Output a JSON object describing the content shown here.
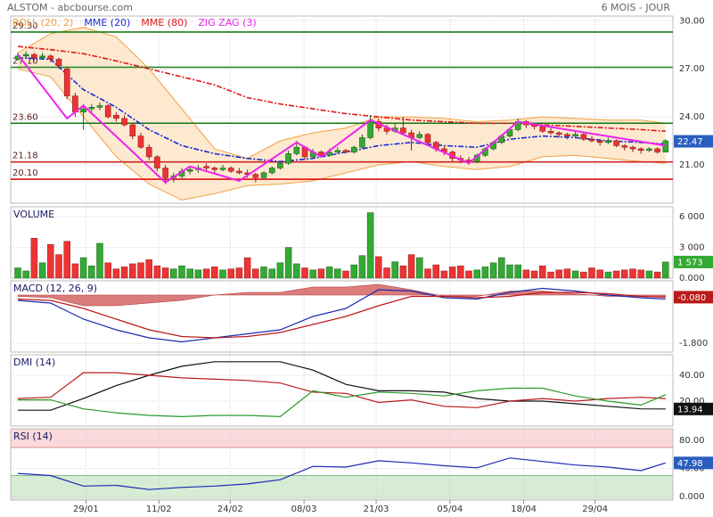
{
  "chart_data": {
    "type": "candlestick",
    "title": "ALSTOM - abcbourse.com",
    "period": "6 MOIS - JOUR",
    "xticks": [
      {
        "value": 8.3,
        "label": "29/01"
      },
      {
        "value": 17.2,
        "label": "11/02"
      },
      {
        "value": 25.9,
        "label": "24/02"
      },
      {
        "value": 34.9,
        "label": "08/03"
      },
      {
        "value": 43.7,
        "label": "21/03"
      },
      {
        "value": 52.7,
        "label": "05/04"
      },
      {
        "value": 61.7,
        "label": "18/04"
      },
      {
        "value": 70.4,
        "label": "29/04"
      }
    ],
    "sample_x": [
      0,
      4,
      8,
      12,
      16,
      20,
      24,
      28,
      32,
      36,
      40,
      44,
      48,
      52,
      56,
      60,
      64,
      68,
      72,
      76,
      79
    ],
    "price": {
      "ylim": [
        18.6,
        30.3
      ],
      "yticks": [
        {
          "value": 21,
          "label": "21.00"
        },
        {
          "value": 24,
          "label": "24.00"
        },
        {
          "value": 27,
          "label": "27.00"
        },
        {
          "value": 30,
          "label": "30.00"
        }
      ],
      "up_color": "#33aa33",
      "down_color": "#ee3333",
      "ohlc": [
        [
          27.6,
          28.0,
          27.5,
          27.8
        ],
        [
          27.8,
          28.1,
          27.6,
          27.9
        ],
        [
          27.9,
          28.0,
          27.5,
          27.7
        ],
        [
          27.7,
          28.0,
          27.6,
          27.8
        ],
        [
          27.8,
          27.9,
          27.4,
          27.6
        ],
        [
          27.6,
          27.7,
          27.0,
          27.2
        ],
        [
          27.0,
          27.1,
          25.1,
          25.3
        ],
        [
          25.3,
          25.5,
          24.0,
          24.3
        ],
        [
          24.3,
          24.8,
          23.2,
          24.5
        ],
        [
          24.5,
          24.8,
          24.3,
          24.6
        ],
        [
          24.6,
          24.9,
          24.4,
          24.7
        ],
        [
          24.7,
          24.8,
          23.9,
          24.0
        ],
        [
          24.1,
          24.3,
          23.7,
          23.9
        ],
        [
          23.9,
          24.1,
          23.4,
          23.5
        ],
        [
          23.5,
          23.6,
          22.6,
          22.8
        ],
        [
          22.8,
          23.0,
          22.0,
          22.1
        ],
        [
          22.1,
          22.3,
          21.3,
          21.5
        ],
        [
          21.5,
          21.6,
          20.6,
          20.8
        ],
        [
          20.8,
          21.0,
          19.8,
          20.2
        ],
        [
          20.2,
          20.5,
          19.9,
          20.3
        ],
        [
          20.3,
          20.8,
          20.1,
          20.6
        ],
        [
          20.6,
          20.9,
          20.4,
          20.7
        ],
        [
          20.7,
          21.0,
          20.5,
          20.8
        ],
        [
          20.9,
          21.1,
          20.6,
          20.8
        ],
        [
          20.8,
          20.9,
          20.5,
          20.7
        ],
        [
          20.7,
          21.0,
          20.6,
          20.8
        ],
        [
          20.8,
          20.9,
          20.5,
          20.6
        ],
        [
          20.6,
          20.8,
          20.4,
          20.5
        ],
        [
          20.5,
          20.7,
          20.2,
          20.4
        ],
        [
          20.4,
          20.5,
          19.9,
          20.2
        ],
        [
          20.2,
          20.6,
          20.1,
          20.5
        ],
        [
          20.5,
          20.9,
          20.4,
          20.8
        ],
        [
          20.8,
          21.2,
          20.7,
          21.1
        ],
        [
          21.1,
          21.9,
          21.0,
          21.7
        ],
        [
          21.7,
          22.5,
          21.6,
          22.1
        ],
        [
          22.1,
          22.2,
          21.3,
          21.5
        ],
        [
          21.5,
          22.0,
          21.4,
          21.8
        ],
        [
          21.8,
          21.9,
          21.5,
          21.6
        ],
        [
          21.6,
          22.0,
          21.5,
          21.8
        ],
        [
          21.8,
          22.1,
          21.7,
          21.9
        ],
        [
          21.9,
          22.0,
          21.7,
          21.8
        ],
        [
          21.8,
          22.2,
          21.7,
          22.1
        ],
        [
          22.1,
          22.9,
          22.0,
          22.7
        ],
        [
          22.7,
          24.1,
          22.6,
          23.7
        ],
        [
          23.7,
          23.9,
          23.1,
          23.3
        ],
        [
          23.3,
          23.5,
          22.9,
          23.1
        ],
        [
          23.1,
          23.6,
          23.0,
          23.3
        ],
        [
          23.3,
          24.0,
          22.9,
          23.0
        ],
        [
          23.0,
          23.2,
          21.9,
          22.7
        ],
        [
          22.7,
          23.1,
          22.6,
          22.9
        ],
        [
          22.9,
          23.0,
          22.2,
          22.4
        ],
        [
          22.4,
          22.5,
          21.8,
          22.0
        ],
        [
          22.0,
          22.2,
          21.6,
          21.8
        ],
        [
          21.8,
          21.9,
          21.2,
          21.4
        ],
        [
          21.4,
          21.6,
          21.1,
          21.3
        ],
        [
          21.3,
          21.5,
          21.0,
          21.2
        ],
        [
          21.2,
          21.7,
          21.1,
          21.6
        ],
        [
          21.6,
          22.1,
          21.5,
          22.0
        ],
        [
          22.0,
          22.5,
          21.9,
          22.4
        ],
        [
          22.4,
          22.9,
          22.3,
          22.8
        ],
        [
          22.8,
          23.3,
          22.7,
          23.2
        ],
        [
          23.2,
          23.9,
          23.1,
          23.7
        ],
        [
          23.7,
          23.8,
          23.3,
          23.5
        ],
        [
          23.5,
          23.6,
          23.2,
          23.4
        ],
        [
          23.4,
          23.5,
          23.0,
          23.1
        ],
        [
          23.1,
          23.3,
          22.9,
          23.0
        ],
        [
          23.0,
          23.1,
          22.7,
          22.9
        ],
        [
          22.9,
          23.0,
          22.6,
          22.8
        ],
        [
          22.8,
          23.1,
          22.7,
          22.9
        ],
        [
          22.9,
          23.0,
          22.5,
          22.6
        ],
        [
          22.6,
          22.8,
          22.4,
          22.5
        ],
        [
          22.5,
          22.6,
          22.2,
          22.4
        ],
        [
          22.4,
          22.7,
          22.3,
          22.5
        ],
        [
          22.5,
          22.6,
          22.1,
          22.2
        ],
        [
          22.2,
          22.3,
          21.9,
          22.1
        ],
        [
          22.1,
          22.2,
          21.8,
          22.0
        ],
        [
          22.0,
          22.1,
          21.7,
          21.9
        ],
        [
          21.9,
          22.1,
          21.8,
          22.0
        ],
        [
          22.0,
          22.1,
          21.7,
          21.8
        ],
        [
          21.8,
          22.6,
          21.8,
          22.5
        ]
      ],
      "levels": [
        {
          "value": 29.3,
          "label": "29.30",
          "color": "#1a7a1a"
        },
        {
          "value": 27.1,
          "label": "27.10",
          "color": "#2a8a2a"
        },
        {
          "value": 23.6,
          "label": "23.60",
          "color": "#117711"
        },
        {
          "value": 21.18,
          "label": "21.18",
          "color": "#cc2222"
        },
        {
          "value": 20.1,
          "label": "20.10",
          "color": "#dd1111"
        }
      ],
      "bollinger": {
        "name": "BOLL (20, 2)",
        "color": "#f0a040",
        "fill": "#fde9d0",
        "upper": [
          28.0,
          29.2,
          29.6,
          29.0,
          27.0,
          24.5,
          22.0,
          21.4,
          22.5,
          23.0,
          23.3,
          24.0,
          24.0,
          23.9,
          23.7,
          23.8,
          24.0,
          23.9,
          23.8,
          23.8,
          23.6
        ],
        "lower": [
          27.0,
          26.5,
          24.0,
          21.5,
          19.8,
          18.8,
          19.2,
          19.7,
          19.8,
          20.0,
          20.5,
          21.0,
          21.2,
          20.9,
          20.7,
          20.9,
          21.5,
          21.6,
          21.4,
          21.2,
          21.1
        ]
      },
      "mme20": {
        "name": "MME (20)",
        "color": "#1a2ad0",
        "values": [
          27.7,
          27.6,
          25.7,
          24.6,
          23.2,
          22.2,
          21.7,
          21.4,
          21.2,
          21.4,
          21.8,
          22.2,
          22.4,
          22.2,
          22.1,
          22.6,
          22.8,
          22.7,
          22.5,
          22.4,
          22.3
        ]
      },
      "mme80": {
        "name": "MME (80)",
        "color": "#dd1a1a",
        "values": [
          28.4,
          28.2,
          27.95,
          27.5,
          27.0,
          26.5,
          26.0,
          25.2,
          24.8,
          24.5,
          24.2,
          24.0,
          23.8,
          23.7,
          23.6,
          23.6,
          23.5,
          23.4,
          23.3,
          23.2,
          23.1
        ]
      },
      "zigzag": {
        "name": "ZIG ZAG (3)",
        "color": "#ee22ee",
        "x": [
          0,
          6,
          8,
          18,
          21,
          27,
          34,
          37,
          43,
          55,
          61,
          79
        ],
        "values": [
          27.9,
          23.9,
          24.7,
          19.9,
          20.9,
          20.0,
          22.4,
          21.5,
          23.8,
          21.1,
          23.7,
          22.2
        ]
      },
      "last": {
        "value": 22.47,
        "label": "22.47",
        "color": "#2a5fc0"
      }
    },
    "volume": {
      "title": "VOLUME",
      "ylim": [
        0,
        6970
      ],
      "yticks": [
        {
          "value": 0,
          "label": "0.000"
        },
        {
          "value": 3000,
          "label": "3 000"
        },
        {
          "value": 6000,
          "label": "6 000"
        }
      ],
      "values": [
        1000,
        700,
        3900,
        1500,
        3300,
        2300,
        3600,
        1400,
        2000,
        1200,
        3400,
        1500,
        900,
        1100,
        1400,
        1500,
        1800,
        1200,
        1000,
        900,
        1200,
        900,
        800,
        900,
        1100,
        800,
        900,
        1000,
        2000,
        900,
        1100,
        900,
        1500,
        3000,
        1400,
        1000,
        800,
        900,
        1100,
        900,
        700,
        1300,
        2200,
        6400,
        2100,
        1000,
        1600,
        1200,
        2300,
        2000,
        900,
        1300,
        700,
        1100,
        1200,
        700,
        800,
        1100,
        1500,
        2000,
        1300,
        1300,
        800,
        700,
        1200,
        600,
        800,
        900,
        700,
        600,
        1000,
        800,
        600,
        700,
        800,
        900,
        800,
        700,
        600,
        1573
      ],
      "last": {
        "value": 1573,
        "label": "1 573",
        "color": "#33aa33"
      }
    },
    "macd": {
      "title": "MACD (12, 26, 9)",
      "ylim": [
        -2.133,
        0.533
      ],
      "yticks": [
        {
          "value": -1.8,
          "label": "-1.800"
        }
      ],
      "histogram": {
        "color": "#cc4444",
        "values": [
          -0.05,
          -0.1,
          -0.4,
          -0.4,
          -0.3,
          -0.2,
          0,
          0.1,
          0.1,
          0.3,
          0.3,
          0.4,
          0.2,
          -0.05,
          -0.05,
          0.15,
          0.15,
          0.05,
          -0.05,
          -0.05,
          -0.07
        ]
      },
      "series": [
        {
          "color": "#1a2ab0",
          "values": [
            -0.2,
            -0.3,
            -0.9,
            -1.3,
            -1.6,
            -1.75,
            -1.6,
            -1.45,
            -1.3,
            -0.8,
            -0.5,
            0.2,
            0.15,
            -0.1,
            -0.15,
            0.1,
            0.25,
            0.15,
            0.0,
            -0.1,
            -0.15
          ]
        },
        {
          "color": "#bb1a1a",
          "values": [
            -0.15,
            -0.2,
            -0.5,
            -0.9,
            -1.3,
            -1.55,
            -1.6,
            -1.55,
            -1.4,
            -1.1,
            -0.8,
            -0.4,
            -0.05,
            -0.05,
            -0.1,
            -0.05,
            0.1,
            0.1,
            0.05,
            -0.05,
            -0.08
          ]
        }
      ],
      "last": {
        "value": -0.08,
        "label": "-0.080",
        "color": "#bb1a1a"
      }
    },
    "dmi": {
      "title": "DMI (14)",
      "ylim": [
        0.7,
        55.9
      ],
      "yticks": [
        {
          "value": 20,
          "label": "20.00"
        },
        {
          "value": 40,
          "label": "40.00"
        }
      ],
      "series": [
        {
          "color": "#111111",
          "values": [
            13,
            13,
            22,
            32,
            40,
            47,
            50.5,
            50.5,
            50.5,
            44,
            33,
            28,
            28,
            27,
            22,
            20,
            20,
            18,
            16,
            14,
            13.94
          ]
        },
        {
          "color": "#bb1a1a",
          "values": [
            22,
            23,
            42,
            42,
            40,
            38,
            37,
            36,
            34,
            27,
            26,
            19,
            21,
            16,
            15,
            20,
            22,
            20,
            22,
            23,
            22
          ]
        },
        {
          "color": "#2a9a2a",
          "values": [
            21,
            21,
            14,
            11,
            9,
            8,
            9,
            9,
            8,
            28,
            23,
            27,
            26,
            24,
            28,
            30,
            30,
            24,
            20,
            17,
            25
          ]
        }
      ],
      "last": {
        "value": 13.94,
        "label": "13.94",
        "color": "#111111"
      }
    },
    "rsi": {
      "title": "RSI (14)",
      "ylim": [
        -5,
        96.7
      ],
      "yticks": [
        {
          "value": 0,
          "label": "0.000"
        },
        {
          "value": 40,
          "label": "40.00"
        },
        {
          "value": 80,
          "label": "80.00"
        }
      ],
      "overbought": 70,
      "oversold": 30,
      "series": [
        {
          "color": "#1a2ab0",
          "values": [
            33,
            30,
            15,
            16,
            10,
            13,
            15,
            18,
            24,
            43,
            42,
            51,
            48,
            44,
            41,
            55,
            50,
            45,
            42,
            37,
            47.98
          ]
        }
      ],
      "last": {
        "value": 47.98,
        "label": "47.98",
        "color": "#2a5fc0"
      }
    }
  }
}
